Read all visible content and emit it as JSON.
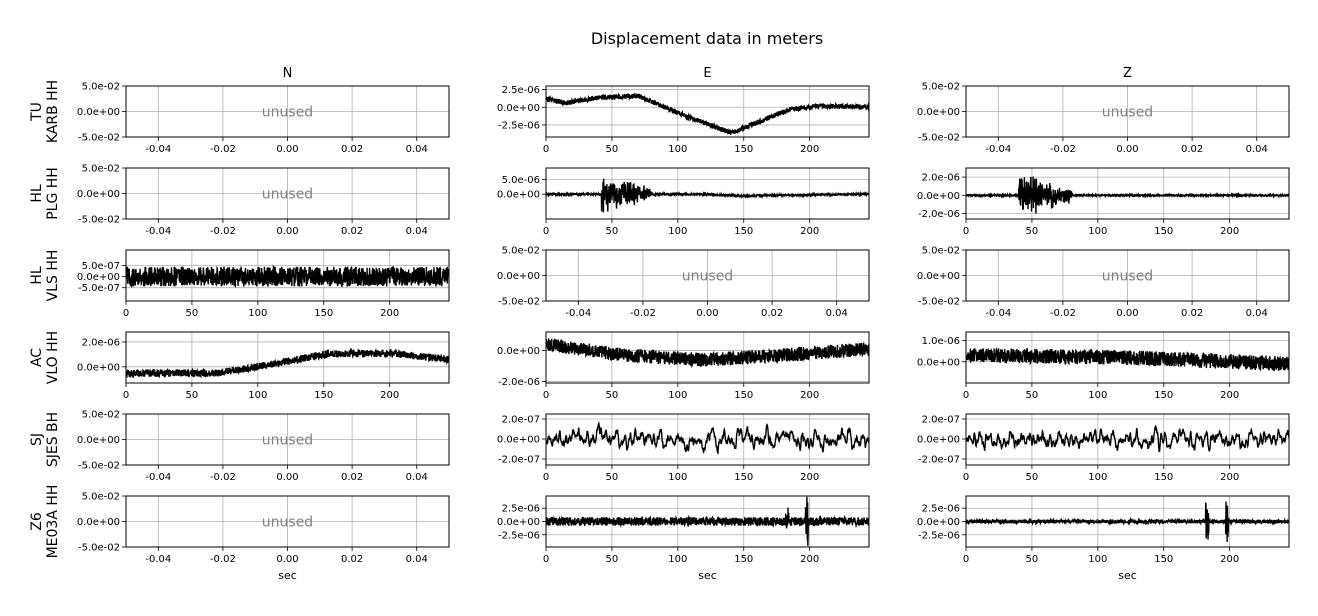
{
  "title": "Displacement data in meters",
  "columns": [
    "N",
    "E",
    "Z"
  ],
  "unused_label": "unused",
  "xlabel": "sec",
  "colors": {
    "trace": "#000000",
    "grid": "#b0b0b0",
    "unused": "#808080"
  },
  "chart_data": {
    "type": "line",
    "rows": [
      {
        "network": "TU",
        "station": "KARB HH",
        "panels": [
          {
            "component": "N",
            "unused": true,
            "xticks": [
              "-0.04",
              "-0.02",
              "0.00",
              "0.02",
              "0.04"
            ],
            "yticks": [
              "5.0e-02",
              "0.0e+00",
              "-5.0e-02"
            ]
          },
          {
            "component": "E",
            "unused": false,
            "xticks": [
              "0",
              "50",
              "100",
              "150",
              "200"
            ],
            "yticks": [
              "2.5e-06",
              "0.0e+00",
              "-2.5e-06"
            ],
            "xlim": [
              0,
              245
            ],
            "ylim": [
              -4.2e-06,
              3e-06
            ],
            "noise": 3.5e-07,
            "trend": [
              [
                0,
                1.2e-06
              ],
              [
                15,
                6e-07
              ],
              [
                40,
                1.4e-06
              ],
              [
                70,
                1.6e-06
              ],
              [
                100,
                -8e-07
              ],
              [
                140,
                -3.6e-06
              ],
              [
                165,
                -1.8e-06
              ],
              [
                185,
                -3e-07
              ],
              [
                210,
                2e-07
              ],
              [
                245,
                0.0
              ]
            ]
          },
          {
            "component": "Z",
            "unused": true,
            "xticks": [
              "-0.04",
              "-0.02",
              "0.00",
              "0.02",
              "0.04"
            ],
            "yticks": [
              "5.0e-02",
              "0.0e+00",
              "-5.0e-02"
            ]
          }
        ]
      },
      {
        "network": "HL",
        "station": "PLG HH",
        "panels": [
          {
            "component": "N",
            "unused": true,
            "xticks": [
              "-0.04",
              "-0.02",
              "0.00",
              "0.02",
              "0.04"
            ],
            "yticks": [
              "5.0e-02",
              "0.0e+00",
              "-5.0e-02"
            ]
          },
          {
            "component": "E",
            "unused": false,
            "xticks": [
              "0",
              "50",
              "100",
              "150",
              "200"
            ],
            "yticks": [
              "5.0e-06",
              "0.0e+00"
            ],
            "xlim": [
              0,
              245
            ],
            "ylim": [
              -8.5e-06,
              9e-06
            ],
            "noise": 3e-07,
            "burst": [
              42,
              80,
              4.5e-06
            ],
            "trend": [
              [
                0,
                0.0
              ],
              [
                120,
                0.0
              ],
              [
                150,
                -6e-07
              ],
              [
                180,
                -3e-07
              ],
              [
                245,
                0.0
              ]
            ]
          },
          {
            "component": "Z",
            "unused": false,
            "xticks": [
              "0",
              "50",
              "100",
              "150",
              "200"
            ],
            "yticks": [
              "2.0e-06",
              "0.0e+00",
              "-2.0e-06"
            ],
            "xlim": [
              0,
              245
            ],
            "ylim": [
              -2.6e-06,
              3e-06
            ],
            "noise": 8e-08,
            "burst": [
              40,
              80,
              1.8e-06
            ],
            "trend": [
              [
                0,
                0.0
              ],
              [
                245,
                0.0
              ]
            ]
          }
        ]
      },
      {
        "network": "HL",
        "station": "VLS HH",
        "panels": [
          {
            "component": "N",
            "unused": false,
            "xticks": [
              "0",
              "50",
              "100",
              "150",
              "200"
            ],
            "yticks": [
              "5.0e-07",
              "0.0e+00",
              "-5.0e-07"
            ],
            "xlim": [
              0,
              245
            ],
            "ylim": [
              -1.1e-06,
              1.2e-06
            ],
            "noise": 4.5e-07,
            "trend": [
              [
                0,
                0.0
              ],
              [
                245,
                0.0
              ]
            ]
          },
          {
            "component": "E",
            "unused": true,
            "xticks": [
              "-0.04",
              "-0.02",
              "0.00",
              "0.02",
              "0.04"
            ],
            "yticks": [
              "5.0e-02",
              "0.0e+00",
              "-5.0e-02"
            ]
          },
          {
            "component": "Z",
            "unused": true,
            "xticks": [
              "-0.04",
              "-0.02",
              "0.00",
              "0.02",
              "0.04"
            ],
            "yticks": [
              "5.0e-02",
              "0.0e+00",
              "-5.0e-02"
            ]
          }
        ]
      },
      {
        "network": "AC",
        "station": "VLO HH",
        "panels": [
          {
            "component": "N",
            "unused": false,
            "xticks": [
              "0",
              "50",
              "100",
              "150",
              "200"
            ],
            "yticks": [
              "2.0e-06",
              "0.0e+00"
            ],
            "xlim": [
              0,
              245
            ],
            "ylim": [
              -1.3e-06,
              2.8e-06
            ],
            "noise": 3e-07,
            "trend": [
              [
                0,
                -5e-07
              ],
              [
                70,
                -5e-07
              ],
              [
                110,
                2e-07
              ],
              [
                150,
                1e-06
              ],
              [
                200,
                1.1e-06
              ],
              [
                245,
                6e-07
              ]
            ]
          },
          {
            "component": "E",
            "unused": false,
            "xticks": [
              "0",
              "50",
              "100",
              "150",
              "200"
            ],
            "yticks": [
              "0.0e+00",
              "-2.0e-06"
            ],
            "xlim": [
              0,
              245
            ],
            "ylim": [
              -2.1e-06,
              1.2e-06
            ],
            "noise": 4.5e-07,
            "trend": [
              [
                0,
                4e-07
              ],
              [
                60,
                -3e-07
              ],
              [
                120,
                -6e-07
              ],
              [
                180,
                -3e-07
              ],
              [
                245,
                1e-07
              ]
            ]
          },
          {
            "component": "Z",
            "unused": false,
            "xticks": [
              "0",
              "50",
              "100",
              "150",
              "200"
            ],
            "yticks": [
              "1.0e-06",
              "0.0e+00"
            ],
            "xlim": [
              0,
              245
            ],
            "ylim": [
              -1e-06,
              1.4e-06
            ],
            "noise": 3.5e-07,
            "trend": [
              [
                0,
                3e-07
              ],
              [
                120,
                2e-07
              ],
              [
                245,
                -1e-07
              ]
            ]
          }
        ]
      },
      {
        "network": "SJ",
        "station": "SJES BH",
        "panels": [
          {
            "component": "N",
            "unused": true,
            "xticks": [
              "-0.04",
              "-0.02",
              "0.00",
              "0.02",
              "0.04"
            ],
            "yticks": [
              "5.0e-02",
              "0.0e+00",
              "-5.0e-02"
            ]
          },
          {
            "component": "E",
            "unused": false,
            "xticks": [
              "0",
              "50",
              "100",
              "150",
              "200"
            ],
            "yticks": [
              "2.0e-07",
              "0.0e+00",
              "-2.0e-07"
            ],
            "xlim": [
              0,
              245
            ],
            "ylim": [
              -2.6e-07,
              2.5e-07
            ],
            "noise": 9e-08,
            "smooth": true,
            "trend": [
              [
                0,
                0.0
              ],
              [
                245,
                -2e-08
              ]
            ]
          },
          {
            "component": "Z",
            "unused": false,
            "xticks": [
              "0",
              "50",
              "100",
              "150",
              "200"
            ],
            "yticks": [
              "2.0e-07",
              "0.0e+00",
              "-2.0e-07"
            ],
            "xlim": [
              0,
              245
            ],
            "ylim": [
              -2.6e-07,
              2.5e-07
            ],
            "noise": 8e-08,
            "smooth": true,
            "trend": [
              [
                0,
                0.0
              ],
              [
                245,
                0.0
              ]
            ]
          }
        ]
      },
      {
        "network": "Z6",
        "station": "ME03A HH",
        "panels": [
          {
            "component": "N",
            "unused": true,
            "xticks": [
              "-0.04",
              "-0.02",
              "0.00",
              "0.02",
              "0.04"
            ],
            "yticks": [
              "5.0e-02",
              "0.0e+00",
              "-5.0e-02"
            ]
          },
          {
            "component": "E",
            "unused": false,
            "xticks": [
              "0",
              "50",
              "100",
              "150",
              "200"
            ],
            "yticks": [
              "2.5e-06",
              "0.0e+00",
              "-2.5e-06"
            ],
            "xlim": [
              0,
              245
            ],
            "ylim": [
              -4.8e-06,
              4.8e-06
            ],
            "noise": 8e-07,
            "spikes": [
              [
                183,
                2e-06
              ],
              [
                198,
                4.5e-06
              ]
            ],
            "trend": [
              [
                0,
                0.0
              ],
              [
                245,
                0.0
              ]
            ]
          },
          {
            "component": "Z",
            "unused": false,
            "xticks": [
              "0",
              "50",
              "100",
              "150",
              "200"
            ],
            "yticks": [
              "2.5e-06",
              "0.0e+00",
              "-2.5e-06"
            ],
            "xlim": [
              0,
              245
            ],
            "ylim": [
              -4.8e-06,
              4.8e-06
            ],
            "noise": 3.5e-07,
            "spikes": [
              [
                183,
                3.5e-06
              ],
              [
                198,
                4.5e-06
              ]
            ],
            "trend": [
              [
                0,
                0.0
              ],
              [
                245,
                0.0
              ]
            ]
          }
        ]
      }
    ]
  }
}
